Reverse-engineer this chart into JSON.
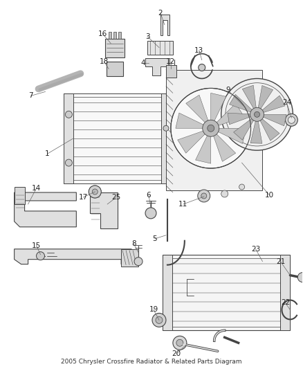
{
  "title": "2005 Chrysler Crossfire Radiator & Related Parts Diagram",
  "bg": "#ffffff",
  "lc": "#444444",
  "tc": "#222222",
  "fs": 7.5,
  "fig_w": 4.38,
  "fig_h": 5.33,
  "dpi": 100
}
